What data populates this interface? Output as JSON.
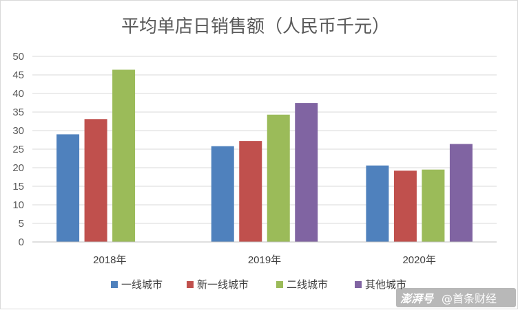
{
  "chart_data": {
    "type": "bar",
    "title": "平均单店日销售额（人民币千元）",
    "categories": [
      "2018年",
      "2019年",
      "2020年"
    ],
    "series": [
      {
        "name": "一线城市",
        "color": "#4f81bd",
        "values": [
          29.0,
          25.8,
          20.6
        ]
      },
      {
        "name": "新一线城市",
        "color": "#c0504d",
        "values": [
          33.1,
          27.2,
          19.2
        ]
      },
      {
        "name": "二线城市",
        "color": "#9bbb59",
        "values": [
          46.4,
          34.3,
          19.5
        ]
      },
      {
        "name": "其他城市",
        "color": "#8064a2",
        "values": [
          null,
          37.4,
          26.4
        ]
      }
    ],
    "yticks": [
      "0",
      "5",
      "10",
      "15",
      "20",
      "25",
      "30",
      "35",
      "40",
      "45",
      "50"
    ],
    "ylim": [
      0,
      50
    ],
    "xlabel": "",
    "ylabel": "",
    "grid": true,
    "legend_position": "bottom"
  },
  "watermark": {
    "brand": "澎湃号",
    "author": "@首条财经"
  }
}
